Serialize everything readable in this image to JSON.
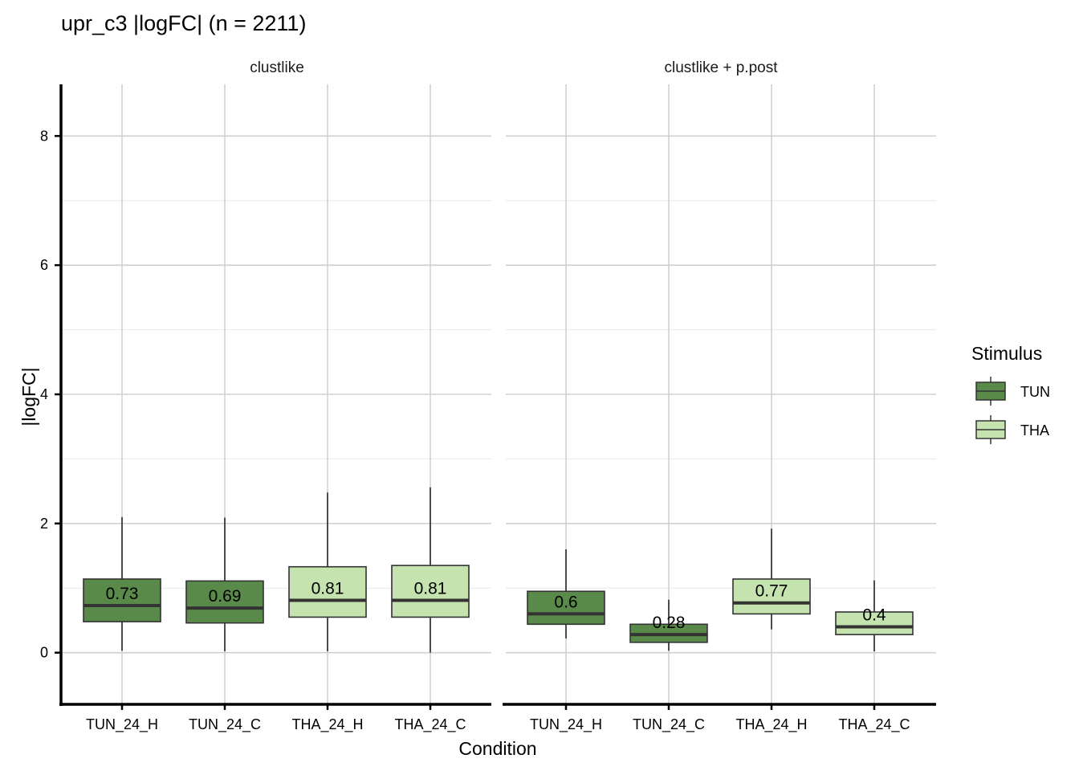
{
  "chart_data": {
    "type": "boxplot",
    "title": "upr_c3 |logFC| (n = 2211)",
    "xlabel": "Condition",
    "ylabel": "|logFC|",
    "ylim": [
      -0.8,
      8.8
    ],
    "yticks": [
      0,
      2,
      4,
      6,
      8
    ],
    "grid": true,
    "legend": {
      "title": "Stimulus",
      "position": "right",
      "entries": [
        {
          "label": "TUN",
          "color": "#5A8A4A"
        },
        {
          "label": "THA",
          "color": "#C5E3AE"
        }
      ]
    },
    "facets": [
      {
        "label": "clustlike",
        "categories": [
          "TUN_24_H",
          "TUN_24_C",
          "THA_24_H",
          "THA_24_C"
        ],
        "boxes": [
          {
            "category": "TUN_24_H",
            "stimulus": "TUN",
            "min": 0.03,
            "q1": 0.48,
            "median": 0.73,
            "q3": 1.14,
            "max": 2.1,
            "label": "0.73"
          },
          {
            "category": "TUN_24_C",
            "stimulus": "TUN",
            "min": 0.02,
            "q1": 0.46,
            "median": 0.69,
            "q3": 1.11,
            "max": 2.09,
            "label": "0.69"
          },
          {
            "category": "THA_24_H",
            "stimulus": "THA",
            "min": 0.02,
            "q1": 0.55,
            "median": 0.81,
            "q3": 1.33,
            "max": 2.48,
            "label": "0.81"
          },
          {
            "category": "THA_24_C",
            "stimulus": "THA",
            "min": 0.0,
            "q1": 0.55,
            "median": 0.81,
            "q3": 1.35,
            "max": 2.56,
            "label": "0.81"
          }
        ]
      },
      {
        "label": "clustlike + p.post",
        "categories": [
          "TUN_24_H",
          "TUN_24_C",
          "THA_24_H",
          "THA_24_C"
        ],
        "boxes": [
          {
            "category": "TUN_24_H",
            "stimulus": "TUN",
            "min": 0.22,
            "q1": 0.44,
            "median": 0.6,
            "q3": 0.95,
            "max": 1.6,
            "label": "0.6"
          },
          {
            "category": "TUN_24_C",
            "stimulus": "TUN",
            "min": 0.03,
            "q1": 0.16,
            "median": 0.28,
            "q3": 0.44,
            "max": 0.82,
            "label": "0.28"
          },
          {
            "category": "THA_24_H",
            "stimulus": "THA",
            "min": 0.36,
            "q1": 0.6,
            "median": 0.77,
            "q3": 1.14,
            "max": 1.92,
            "label": "0.77"
          },
          {
            "category": "THA_24_C",
            "stimulus": "THA",
            "min": 0.02,
            "q1": 0.28,
            "median": 0.4,
            "q3": 0.63,
            "max": 1.12,
            "label": "0.4"
          }
        ]
      }
    ]
  }
}
